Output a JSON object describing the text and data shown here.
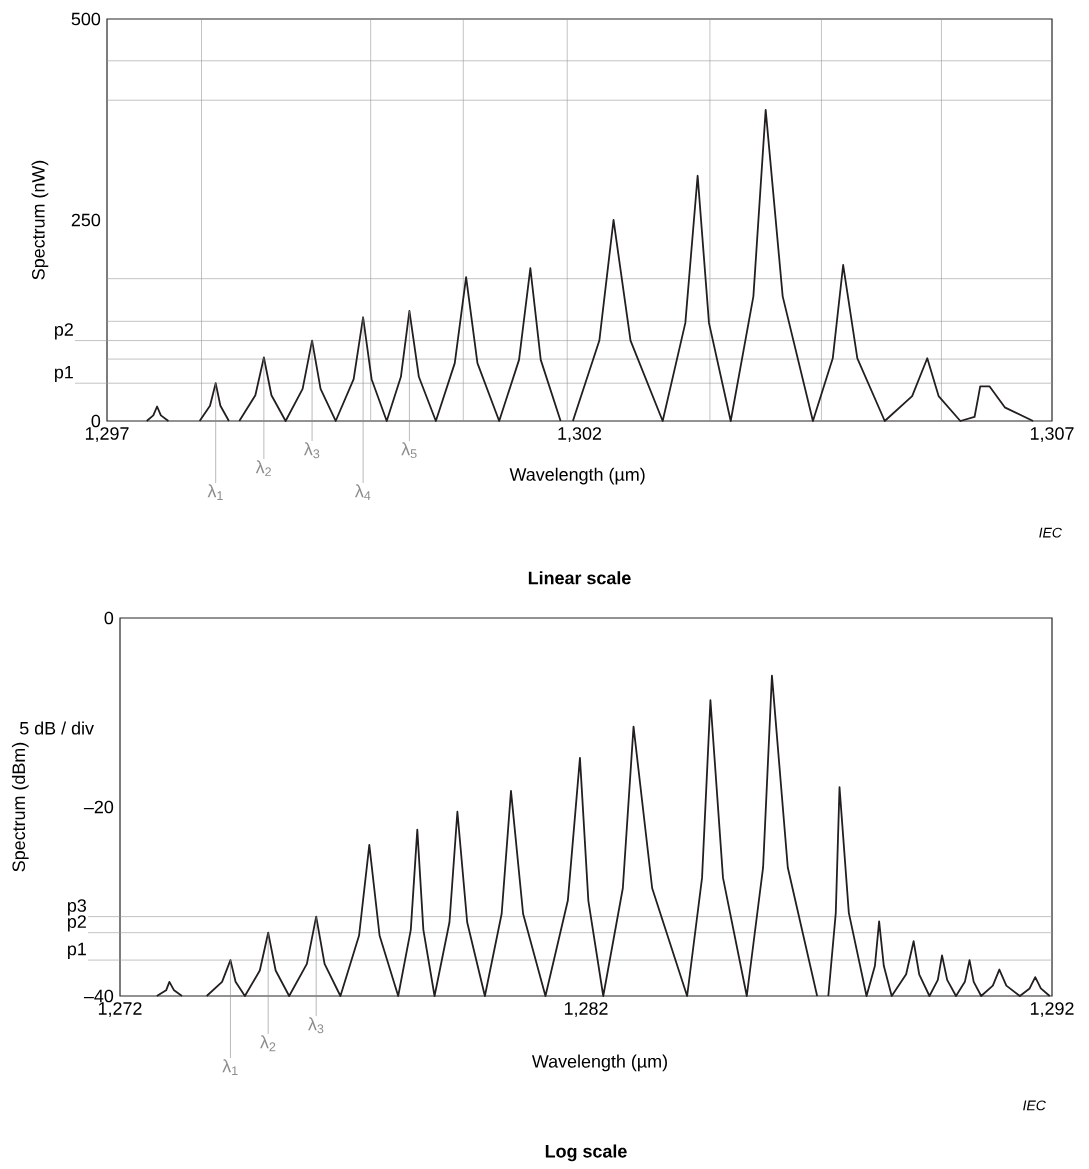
{
  "chart_data": [
    {
      "type": "line",
      "title": "Linear scale",
      "xlabel": "Wavelength  (µm)",
      "ylabel": "Spectrum  (nW)",
      "xlim": [
        1297,
        1307
      ],
      "ylim": [
        0,
        500
      ],
      "xticks": [
        {
          "value": 1297,
          "label": "1,297"
        },
        {
          "value": 1302,
          "label": "1,302"
        },
        {
          "value": 1307,
          "label": "1,307"
        }
      ],
      "yticks": [
        0,
        250,
        500
      ],
      "series": [
        {
          "color": "#231f20",
          "x": [
            1297.42,
            1297.49,
            1297.53,
            1297.57,
            1297.65,
            1297.8,
            1297.98,
            1298.09,
            1298.15,
            1298.2,
            1298.29,
            1298.35,
            1298.4,
            1298.57,
            1298.66,
            1298.74,
            1298.89,
            1299.07,
            1299.17,
            1299.26,
            1299.42,
            1299.61,
            1299.71,
            1299.8,
            1299.96,
            1300.11,
            1300.2,
            1300.3,
            1300.48,
            1300.68,
            1300.8,
            1300.92,
            1301.15,
            1301.36,
            1301.48,
            1301.59,
            1301.8,
            1301.86,
            1301.93,
            1302.21,
            1302.36,
            1302.54,
            1302.88,
            1303.12,
            1303.25,
            1303.37,
            1303.6,
            1303.84,
            1303.97,
            1304.15,
            1304.47,
            1304.68,
            1304.79,
            1304.94,
            1305.23,
            1305.52,
            1305.68,
            1305.8,
            1306.03,
            1306.18,
            1306.22,
            1306.24,
            1306.34,
            1306.5,
            1306.8
          ],
          "values": [
            0,
            7,
            18,
            7,
            0,
            null,
            0,
            19,
            47,
            19,
            0,
            null,
            0,
            32,
            79,
            32,
            0,
            40,
            100,
            40,
            0,
            52,
            129,
            52,
            0,
            55,
            137,
            55,
            0,
            72,
            179,
            72,
            0,
            76,
            190,
            76,
            0,
            null,
            0,
            100,
            250,
            100,
            0,
            122,
            305,
            122,
            0,
            155,
            387,
            155,
            0,
            78,
            194,
            78,
            0,
            31,
            78,
            31,
            0,
            5,
            30,
            43,
            43,
            17,
            0
          ]
        }
      ],
      "ref_lines": [
        {
          "axis": "x",
          "value": 1298.0
        },
        {
          "axis": "x",
          "value": 1299.79
        },
        {
          "axis": "x",
          "value": 1300.77
        },
        {
          "axis": "x",
          "value": 1301.87
        },
        {
          "axis": "x",
          "value": 1303.38
        },
        {
          "axis": "x",
          "value": 1304.56
        },
        {
          "axis": "x",
          "value": 1305.83
        },
        {
          "axis": "y",
          "value": 448
        },
        {
          "axis": "y",
          "value": 399
        },
        {
          "axis": "y",
          "value": 177
        },
        {
          "axis": "y",
          "value": 124
        },
        {
          "axis": "y",
          "value": 77
        },
        {
          "axis": "y",
          "value": 47,
          "label": "p1"
        },
        {
          "axis": "y",
          "value": 100,
          "label": "p2"
        }
      ],
      "annotations": [
        {
          "text": "λ$_{1}$",
          "x": 1298.15,
          "y": 47
        },
        {
          "text": "λ$_{2}$",
          "x": 1298.66,
          "y": 79
        },
        {
          "text": "λ$_{3}$",
          "x": 1299.17,
          "y": 100
        },
        {
          "text": "λ$_{4}$",
          "x": 1299.71,
          "y": 129
        },
        {
          "text": "λ$_{5}$",
          "x": 1300.2,
          "y": 137
        },
        "IEC"
      ]
    },
    {
      "type": "line",
      "title": "Log scale",
      "xlabel": "Wavelength  (µm)",
      "ylabel": "Spectrum  (dBm)",
      "xlim": [
        1272,
        1292
      ],
      "ylim": [
        -40,
        0
      ],
      "xticks": [
        {
          "value": 1272,
          "label": "1,272"
        },
        {
          "value": 1282,
          "label": "1,282"
        },
        {
          "value": 1292,
          "label": "1,292"
        }
      ],
      "yticks": [
        {
          "value": -40,
          "label": "–40"
        },
        {
          "value": -20,
          "label": "–20"
        },
        0
      ],
      "series": [
        {
          "color": "#231f20",
          "x": [
            1272.79,
            1272.99,
            1273.06,
            1273.16,
            1273.33,
            1273.6,
            1273.86,
            1274.19,
            1274.37,
            1274.48,
            1274.68,
            1275.0,
            1275.18,
            1275.34,
            1275.63,
            1276.01,
            1276.21,
            1276.39,
            1276.73,
            1277.13,
            1277.35,
            1277.57,
            1277.97,
            1278.24,
            1278.38,
            1278.51,
            1278.75,
            1279.07,
            1279.24,
            1279.45,
            1279.83,
            1280.19,
            1280.39,
            1280.65,
            1281.13,
            1281.61,
            1281.87,
            1282.05,
            1282.37,
            1282.79,
            1283.02,
            1283.42,
            1284.17,
            1284.49,
            1284.67,
            1284.94,
            1285.45,
            1285.8,
            1285.99,
            1286.33,
            1286.96,
            1287.08,
            1287.2,
            1287.36,
            1287.44,
            1287.64,
            1288.02,
            1288.2,
            1288.29,
            1288.39,
            1288.56,
            1288.87,
            1289.03,
            1289.15,
            1289.37,
            1289.55,
            1289.64,
            1289.75,
            1289.94,
            1290.13,
            1290.23,
            1290.32,
            1290.48,
            1290.73,
            1290.87,
            1291.02,
            1291.31,
            1291.52,
            1291.64,
            1291.76,
            1291.95
          ],
          "values": [
            -40,
            -39.4,
            -38.5,
            -39.4,
            -40,
            null,
            -40,
            -38.5,
            -36.2,
            -38.5,
            -40,
            -37.3,
            -33.3,
            -37.3,
            -40,
            -36.6,
            -31.6,
            -36.6,
            -40,
            -33.6,
            -24.0,
            -33.6,
            -40,
            -33.0,
            -22.4,
            -33.0,
            -40,
            -32.2,
            -20.5,
            -32.2,
            -40,
            -31.3,
            -18.3,
            -31.3,
            -40,
            -29.9,
            -14.8,
            -29.9,
            -40,
            -28.6,
            -11.5,
            -28.6,
            -40,
            -27.5,
            -8.7,
            -27.5,
            -40,
            -26.4,
            -6.1,
            -26.4,
            -40,
            null,
            -40,
            -31.2,
            -17.9,
            -31.2,
            -40,
            -36.8,
            -32.1,
            -36.8,
            -40,
            -37.7,
            -34.2,
            -37.7,
            -40,
            -38.3,
            -35.7,
            -38.3,
            -40,
            -38.5,
            -36.2,
            -38.5,
            -40,
            -38.9,
            -37.2,
            -38.9,
            -40,
            -39.2,
            -38.0,
            -39.2,
            -40
          ]
        }
      ],
      "ref_lines": [
        {
          "axis": "y",
          "value": -36.2,
          "label": "p1"
        },
        {
          "axis": "y",
          "value": -33.3,
          "label": "p2"
        },
        {
          "axis": "y",
          "value": -31.6,
          "label": "p3"
        }
      ],
      "annotations": [
        {
          "text": "λ$_{1}$",
          "x": 1274.37,
          "y": -36.2
        },
        {
          "text": "λ$_{2}$",
          "x": 1275.18,
          "y": -33.3
        },
        {
          "text": "λ$_{3}$",
          "x": 1276.21,
          "y": -31.6
        },
        "5 dB / div",
        "IEC"
      ]
    }
  ]
}
